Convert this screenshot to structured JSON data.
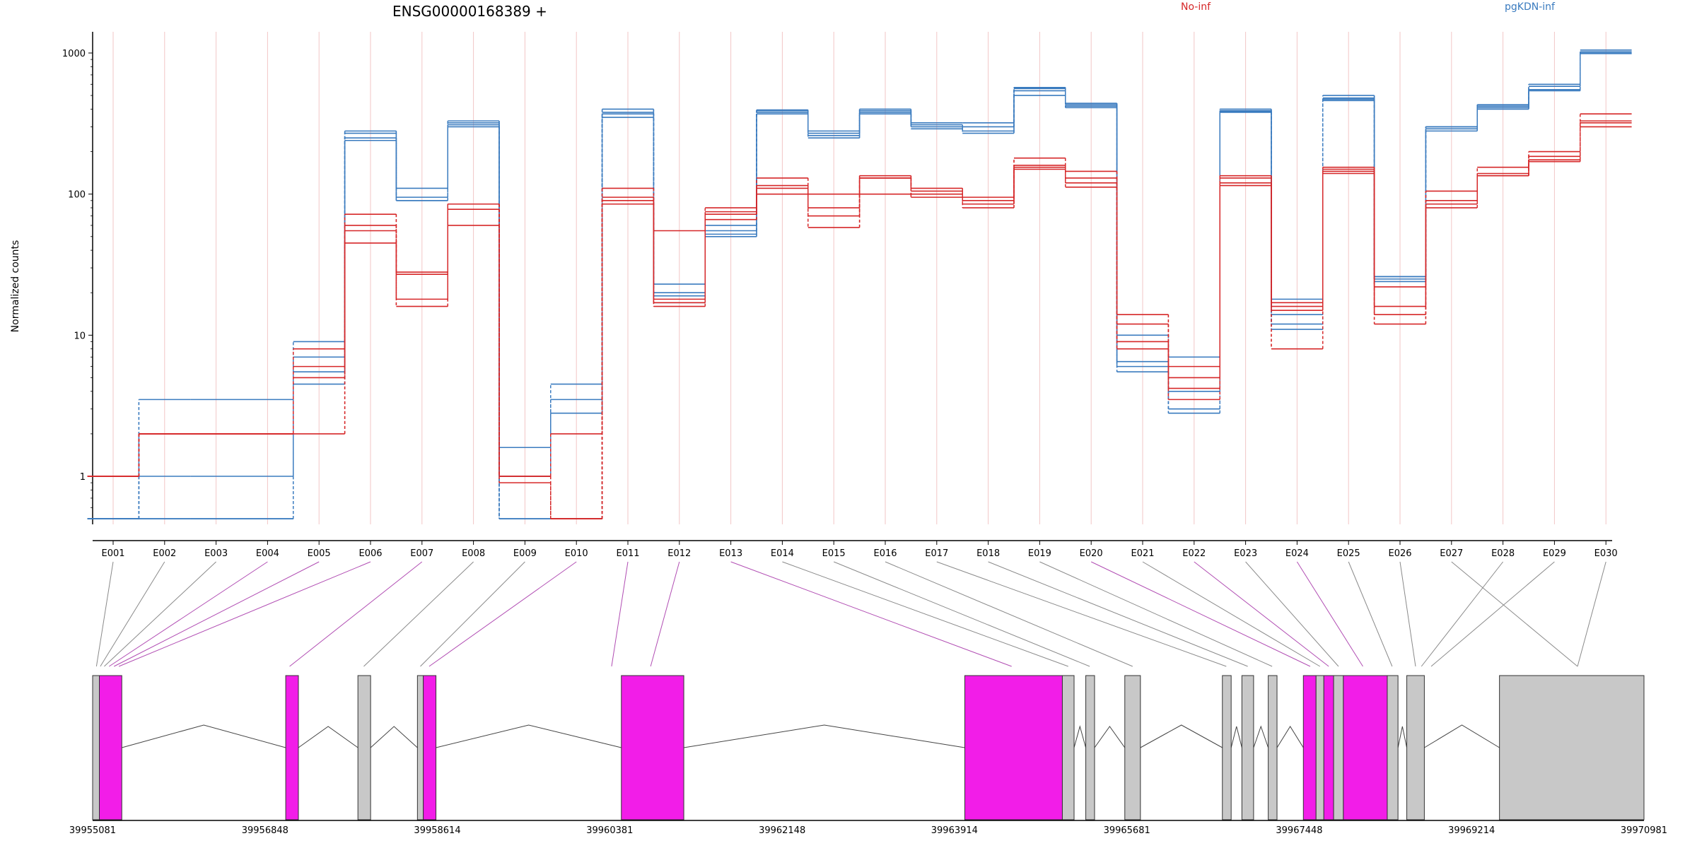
{
  "chart_data": {
    "type": "line",
    "title": "ENSG00000168389 +",
    "ylabel": "Normalized counts",
    "yscale": "log",
    "ylim": [
      0.45,
      2000
    ],
    "yticks": [
      1,
      10,
      100,
      1000
    ],
    "ytick_labels": [
      "1",
      "10",
      "100",
      "1000"
    ],
    "categories": [
      "E001",
      "E002",
      "E003",
      "E004",
      "E005",
      "E006",
      "E007",
      "E008",
      "E009",
      "E010",
      "E011",
      "E012",
      "E013",
      "E014",
      "E015",
      "E016",
      "E017",
      "E018",
      "E019",
      "E020",
      "E021",
      "E022",
      "E023",
      "E024",
      "E025",
      "E026",
      "E027",
      "E028",
      "E029",
      "E030"
    ],
    "legend": [
      {
        "name": "No-inf",
        "color": "#d62728"
      },
      {
        "name": "pgKDN-inf",
        "color": "#3a7bbf"
      }
    ],
    "series": [
      {
        "group": "pgKDN-inf",
        "color": "#3a7bbf",
        "values": [
          0.5,
          3.5,
          3.5,
          3.5,
          9,
          280,
          110,
          330,
          1.6,
          4.5,
          400,
          23,
          55,
          380,
          280,
          400,
          320,
          320,
          570,
          440,
          10,
          7,
          400,
          18,
          500,
          26,
          300,
          430,
          600,
          1050
        ]
      },
      {
        "group": "pgKDN-inf",
        "color": "#3a7bbf",
        "values": [
          0.5,
          1,
          1,
          1,
          7,
          250,
          90,
          310,
          1,
          3.5,
          350,
          20,
          50,
          390,
          260,
          380,
          300,
          280,
          540,
          420,
          6.5,
          3,
          380,
          14,
          470,
          25,
          290,
          420,
          580,
          1020
        ]
      },
      {
        "group": "pgKDN-inf",
        "color": "#3a7bbf",
        "values": [
          0.5,
          0.5,
          0.5,
          0.5,
          5.5,
          270,
          95,
          320,
          0.5,
          2.8,
          380,
          19,
          60,
          395,
          270,
          390,
          310,
          300,
          560,
          430,
          6,
          2.8,
          390,
          11,
          480,
          24,
          280,
          410,
          550,
          1000
        ]
      },
      {
        "group": "pgKDN-inf",
        "color": "#3a7bbf",
        "values": [
          0.5,
          0.5,
          0.5,
          0.5,
          4.5,
          240,
          90,
          300,
          0.5,
          0.5,
          370,
          17,
          52,
          370,
          250,
          370,
          290,
          270,
          500,
          410,
          5.5,
          4,
          385,
          12,
          460,
          26,
          300,
          400,
          540,
          990
        ]
      },
      {
        "group": "No-inf",
        "color": "#d62728",
        "values": [
          1,
          2,
          2,
          2,
          8,
          72,
          28,
          85,
          1,
          2,
          110,
          55,
          80,
          130,
          100,
          130,
          110,
          95,
          180,
          145,
          14,
          6,
          135,
          17,
          155,
          22,
          105,
          155,
          200,
          370
        ]
      },
      {
        "group": "No-inf",
        "color": "#d62728",
        "values": [
          1,
          2,
          2,
          2,
          6,
          60,
          27,
          78,
          1,
          0.5,
          90,
          17,
          72,
          115,
          80,
          135,
          105,
          90,
          160,
          130,
          12,
          5,
          130,
          16,
          150,
          16,
          90,
          140,
          185,
          320
        ]
      },
      {
        "group": "No-inf",
        "color": "#d62728",
        "values": [
          1,
          2,
          2,
          2,
          5,
          55,
          18,
          85,
          0.9,
          0.5,
          85,
          18,
          75,
          110,
          70,
          130,
          100,
          85,
          155,
          120,
          9,
          4.2,
          120,
          15,
          145,
          14,
          85,
          135,
          175,
          330
        ]
      },
      {
        "group": "No-inf",
        "color": "#d62728",
        "values": [
          1,
          2,
          2,
          2,
          2,
          45,
          16,
          60,
          1,
          0.5,
          95,
          16,
          66,
          100,
          58,
          100,
          95,
          80,
          150,
          112,
          8,
          3.5,
          115,
          8,
          140,
          12,
          80,
          135,
          170,
          300
        ]
      }
    ],
    "genomic_axis": {
      "tick_labels": [
        "39955081",
        "39956848",
        "39958614",
        "39960381",
        "39962148",
        "39963914",
        "39965681",
        "39967448",
        "39969214",
        "39970981"
      ],
      "start": 39955081,
      "end": 39970981
    },
    "exons": [
      {
        "start": 39955081,
        "end": 39955150,
        "highlight": false
      },
      {
        "start": 39955150,
        "end": 39955380,
        "highlight": true
      },
      {
        "start": 39957060,
        "end": 39957190,
        "highlight": true
      },
      {
        "start": 39957800,
        "end": 39957930,
        "highlight": false
      },
      {
        "start": 39958410,
        "end": 39958470,
        "highlight": false
      },
      {
        "start": 39958470,
        "end": 39958600,
        "highlight": true
      },
      {
        "start": 39960500,
        "end": 39961140,
        "highlight": true
      },
      {
        "start": 39964020,
        "end": 39965020,
        "highlight": true
      },
      {
        "start": 39965020,
        "end": 39965140,
        "highlight": false
      },
      {
        "start": 39965260,
        "end": 39965350,
        "highlight": false
      },
      {
        "start": 39965660,
        "end": 39965820,
        "highlight": false
      },
      {
        "start": 39966660,
        "end": 39966750,
        "highlight": false
      },
      {
        "start": 39966860,
        "end": 39966980,
        "highlight": false
      },
      {
        "start": 39967130,
        "end": 39967220,
        "highlight": false
      },
      {
        "start": 39967490,
        "end": 39967620,
        "highlight": true
      },
      {
        "start": 39967620,
        "end": 39967700,
        "highlight": false
      },
      {
        "start": 39967700,
        "end": 39967800,
        "highlight": true
      },
      {
        "start": 39967800,
        "end": 39967900,
        "highlight": false
      },
      {
        "start": 39967900,
        "end": 39968350,
        "highlight": true
      },
      {
        "start": 39968350,
        "end": 39968460,
        "highlight": false
      },
      {
        "start": 39968550,
        "end": 39968730,
        "highlight": false
      },
      {
        "start": 39969500,
        "end": 39970981,
        "highlight": false
      }
    ],
    "exon_links": [
      {
        "target": 39955120,
        "highlight": false
      },
      {
        "target": 39955160,
        "highlight": false
      },
      {
        "target": 39955200,
        "highlight": false
      },
      {
        "target": 39955250,
        "highlight": true
      },
      {
        "target": 39955300,
        "highlight": true
      },
      {
        "target": 39955350,
        "highlight": true
      },
      {
        "target": 39957100,
        "highlight": true
      },
      {
        "target": 39957860,
        "highlight": false
      },
      {
        "target": 39958440,
        "highlight": false
      },
      {
        "target": 39958530,
        "highlight": true
      },
      {
        "target": 39960400,
        "highlight": true
      },
      {
        "target": 39960800,
        "highlight": true
      },
      {
        "target": 39964500,
        "highlight": true
      },
      {
        "target": 39965080,
        "highlight": false
      },
      {
        "target": 39965300,
        "highlight": false
      },
      {
        "target": 39965740,
        "highlight": false
      },
      {
        "target": 39966700,
        "highlight": false
      },
      {
        "target": 39966920,
        "highlight": false
      },
      {
        "target": 39967170,
        "highlight": false
      },
      {
        "target": 39967560,
        "highlight": true
      },
      {
        "target": 39967660,
        "highlight": false
      },
      {
        "target": 39967750,
        "highlight": true
      },
      {
        "target": 39967850,
        "highlight": false
      },
      {
        "target": 39968100,
        "highlight": true
      },
      {
        "target": 39968400,
        "highlight": false
      },
      {
        "target": 39968640,
        "highlight": false
      },
      {
        "target": 39970300,
        "highlight": false
      }
    ],
    "colors": {
      "highlight_exon": "#f21de8",
      "plain_exon": "#c8c8c8",
      "highlight_link": "#b14db3",
      "plain_link": "#8a8a8a",
      "vertical_guides": "#f2c6c6"
    }
  }
}
